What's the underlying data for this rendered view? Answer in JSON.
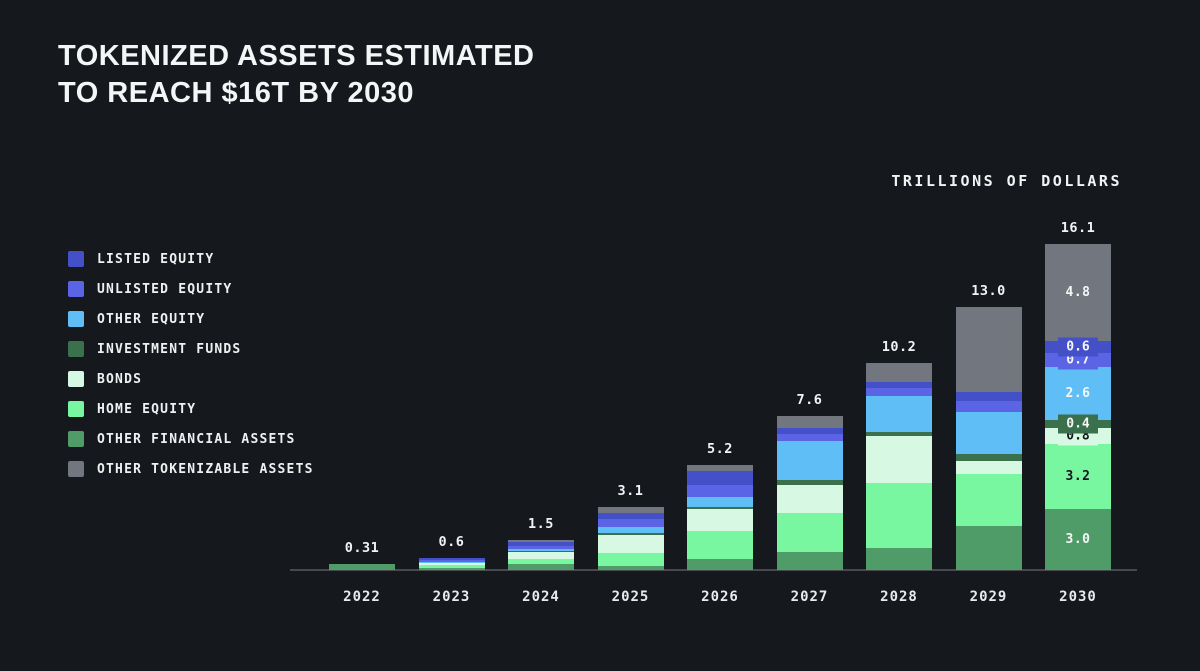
{
  "header": {
    "title_line1": "TOKENIZED ASSETS ESTIMATED",
    "title_line2": "TO REACH $16T BY 2030",
    "units_label": "TRILLIONS OF DOLLARS"
  },
  "colors": {
    "background": "#15181c",
    "axis_line": "#47494e",
    "text_light": "#f5f6f7",
    "text_dark": "#14171b"
  },
  "chart_data": {
    "type": "bar",
    "subtype": "stacked-vertical",
    "title": "TOKENIZED ASSETS ESTIMATED TO REACH $16T BY 2030",
    "ylabel": "TRILLIONS OF DOLLARS",
    "xlabel": "",
    "grid": false,
    "legend_position": "left",
    "categories": [
      "2022",
      "2023",
      "2024",
      "2025",
      "2026",
      "2027",
      "2028",
      "2029",
      "2030"
    ],
    "totals_display": [
      "0.31",
      "0.6",
      "1.5",
      "3.1",
      "5.2",
      "7.6",
      "10.2",
      "13.0",
      "16.1"
    ],
    "totals": [
      0.31,
      0.6,
      1.5,
      3.1,
      5.2,
      7.6,
      10.2,
      13.0,
      16.1
    ],
    "stack_top_to_bottom": [
      "other_tokenizable",
      "listed_equity",
      "unlisted_equity",
      "other_equity",
      "investment_funds",
      "bonds",
      "home_equity",
      "other_financial"
    ],
    "series": [
      {
        "key": "listed_equity",
        "name": "LISTED EQUITY",
        "color": "#4350c8",
        "values": [
          0,
          0.1,
          0.2,
          0.3,
          0.7,
          0.3,
          0.3,
          0.45,
          0.6
        ],
        "label_2030": "0.6",
        "label_color": "light",
        "chip": true
      },
      {
        "key": "unlisted_equity",
        "name": "UNLISTED EQUITY",
        "color": "#5c64e6",
        "values": [
          0,
          0.1,
          0.15,
          0.4,
          0.6,
          0.35,
          0.4,
          0.55,
          0.7
        ],
        "label_2030": "0.7",
        "label_color": "light",
        "chip": true
      },
      {
        "key": "other_equity",
        "name": "OTHER EQUITY",
        "color": "#5fbef5",
        "values": [
          0,
          0.05,
          0.1,
          0.25,
          0.5,
          1.9,
          1.8,
          2.05,
          2.6
        ],
        "label_2030": "2.6",
        "label_color": "light",
        "chip": false
      },
      {
        "key": "investment_funds",
        "name": "INVESTMENT FUNDS",
        "color": "#3b704c",
        "values": [
          0,
          0,
          0.05,
          0.1,
          0.1,
          0.25,
          0.2,
          0.35,
          0.4
        ],
        "label_2030": "0.4",
        "label_color": "light",
        "chip": true
      },
      {
        "key": "bonds",
        "name": "BONDS",
        "color": "#d7f8e3",
        "values": [
          0,
          0.1,
          0.35,
          0.9,
          1.1,
          1.4,
          2.3,
          0.65,
          0.8
        ],
        "label_2030": "0.8",
        "label_color": "dark",
        "chip": true
      },
      {
        "key": "home_equity",
        "name": "HOME EQUITY",
        "color": "#79f7a0",
        "values": [
          0.03,
          0.15,
          0.25,
          0.65,
          1.35,
          1.9,
          3.2,
          2.6,
          3.2
        ],
        "label_2030": "3.2",
        "label_color": "dark",
        "chip": false
      },
      {
        "key": "other_financial",
        "name": "OTHER FINANCIAL ASSETS",
        "color": "#4f9c68",
        "values": [
          0.28,
          0.1,
          0.3,
          0.2,
          0.55,
          0.9,
          1.1,
          2.15,
          3.0
        ],
        "label_2030": "3.0",
        "label_color": "light",
        "chip": false
      },
      {
        "key": "other_tokenizable",
        "name": "OTHER TOKENIZABLE ASSETS",
        "color": "#71767f",
        "values": [
          0,
          0,
          0.1,
          0.3,
          0.3,
          0.6,
          0.9,
          4.2,
          4.8
        ],
        "label_2030": "4.8",
        "label_color": "light",
        "chip": false
      }
    ]
  }
}
